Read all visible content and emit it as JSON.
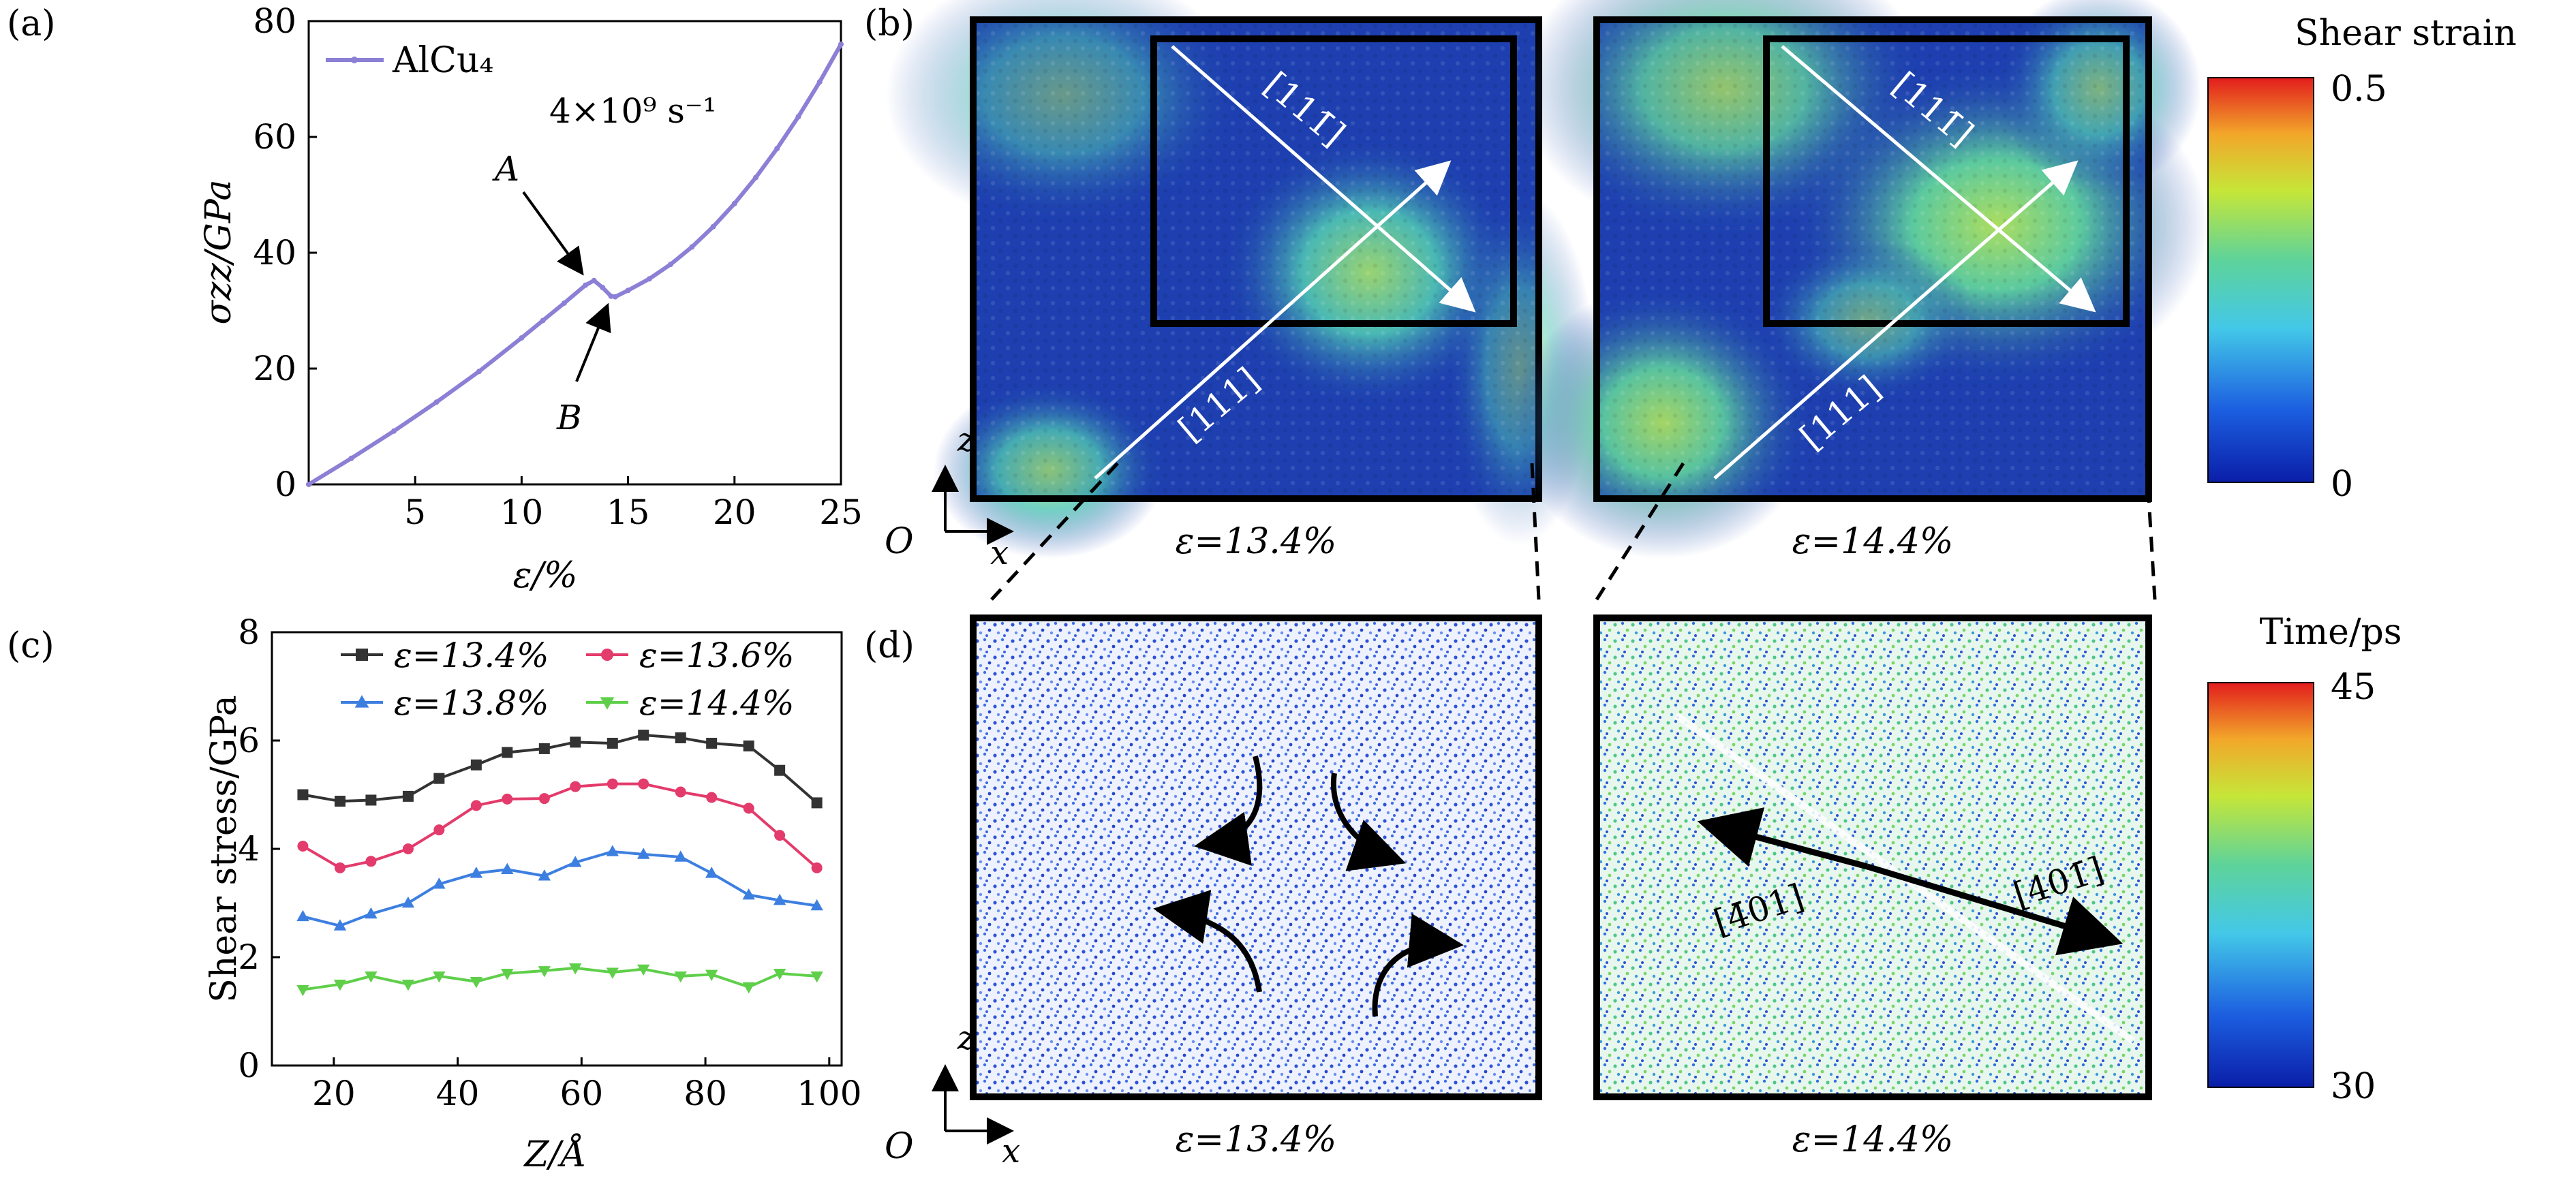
{
  "figure": {
    "panel_a": {
      "letter": "(a)",
      "legend": "AlCu₄",
      "rate_label": "4×10⁹ s⁻¹",
      "annotation_a": "A",
      "annotation_b": "B",
      "xlabel": "ε/%",
      "ylabel": "σzz/GPa",
      "xticks": [
        "5",
        "10",
        "15",
        "20",
        "25"
      ],
      "yticks": [
        "0",
        "20",
        "40",
        "60",
        "80"
      ]
    },
    "panel_b": {
      "letter": "(b)",
      "label_left": "ε=13.4%",
      "label_right": "ε=14.4%",
      "dir_111": "[111]",
      "dir_11m1": "[111̄]",
      "axis_z": "z",
      "axis_x": "x",
      "axis_o": "O",
      "colorbar_title": "Shear strain",
      "colorbar_max": "0.5",
      "colorbar_min": "0"
    },
    "panel_c": {
      "letter": "(c)",
      "xlabel": "Z/Å",
      "ylabel": "Shear stress/GPa",
      "xticks": [
        "20",
        "40",
        "60",
        "80",
        "100"
      ],
      "yticks": [
        "0",
        "2",
        "4",
        "6",
        "8"
      ]
    },
    "panel_d": {
      "letter": "(d)",
      "label_left": "ε=13.4%",
      "label_right": "ε=14.4%",
      "dir_left": "[4̄01]",
      "dir_right": "[401̄]",
      "axis_z": "z",
      "axis_x": "x",
      "axis_o": "O",
      "colorbar_title": "Time/ps",
      "colorbar_max": "45",
      "colorbar_min": "30"
    }
  },
  "chart_data": [
    {
      "type": "line",
      "panel": "(a)",
      "xlabel": "ε/%",
      "ylabel": "σzz/GPa",
      "xlim": [
        0,
        25
      ],
      "ylim": [
        0,
        80
      ],
      "series": [
        {
          "name": "AlCu₄",
          "color": "#8b7fd6",
          "x": [
            0,
            2,
            4,
            6,
            8,
            10,
            11,
            12,
            13,
            13.4,
            13.8,
            14.2,
            14.4,
            15,
            16,
            17,
            18,
            19,
            20,
            21,
            22,
            23,
            24,
            25
          ],
          "y": [
            0,
            4.5,
            9.2,
            14.2,
            19.5,
            25.3,
            28.3,
            31.3,
            34.4,
            35.2,
            34,
            32.5,
            32.4,
            33.5,
            35.5,
            38,
            41,
            44.5,
            48.5,
            53,
            58,
            63.5,
            69.5,
            76
          ]
        }
      ],
      "annotations": [
        {
          "label": "A",
          "x": 13.4,
          "y": 35.2
        },
        {
          "label": "B",
          "x": 14.4,
          "y": 32.4
        }
      ]
    },
    {
      "type": "line",
      "panel": "(c)",
      "xlabel": "Z/Å",
      "ylabel": "Shear stress/GPa",
      "xlim": [
        10,
        102
      ],
      "ylim": [
        0,
        8
      ],
      "x": [
        15,
        21,
        26,
        32,
        37,
        43,
        48,
        54,
        59,
        65,
        70,
        76,
        81,
        87,
        92,
        98
      ],
      "series": [
        {
          "name": "ε=13.4%",
          "color": "#333333",
          "marker": "square",
          "values": [
            5.0,
            4.88,
            4.9,
            4.97,
            5.3,
            5.55,
            5.78,
            5.85,
            5.97,
            5.95,
            6.1,
            6.05,
            5.95,
            5.9,
            5.45,
            4.85
          ]
        },
        {
          "name": "ε=13.6%",
          "color": "#e33b6b",
          "marker": "circle",
          "values": [
            4.05,
            3.65,
            3.77,
            4.0,
            4.35,
            4.8,
            4.92,
            4.93,
            5.15,
            5.2,
            5.2,
            5.05,
            4.95,
            4.75,
            4.25,
            3.65
          ]
        },
        {
          "name": "ε=13.8%",
          "color": "#3d7fe0",
          "marker": "triangle-up",
          "values": [
            2.75,
            2.58,
            2.8,
            3.0,
            3.35,
            3.55,
            3.62,
            3.5,
            3.75,
            3.95,
            3.9,
            3.85,
            3.55,
            3.15,
            3.05,
            2.95
          ]
        },
        {
          "name": "ε=14.4%",
          "color": "#5fcf4a",
          "marker": "triangle-down",
          "values": [
            1.4,
            1.5,
            1.65,
            1.5,
            1.65,
            1.55,
            1.7,
            1.75,
            1.8,
            1.72,
            1.78,
            1.65,
            1.68,
            1.45,
            1.7,
            1.65
          ]
        }
      ]
    }
  ],
  "colors": {
    "bg_blue": "#1d3fb0",
    "bg_deep": "#0f27a6",
    "strain_mid": "#4fc0c8",
    "strain_hot": "#a4e36a",
    "time_scatter_a": "#3a5fd8",
    "time_scatter_b": "#6fcf8c"
  }
}
